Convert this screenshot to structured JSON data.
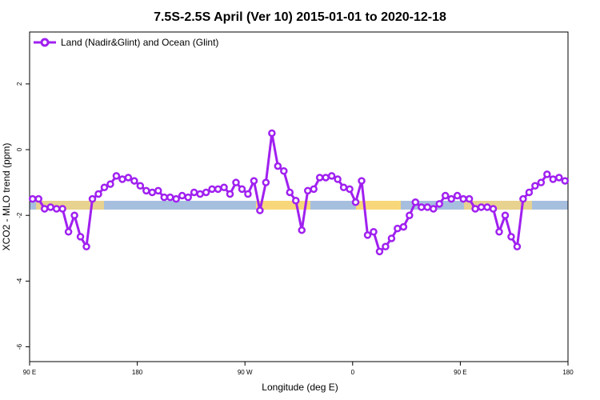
{
  "chart_data": {
    "type": "line",
    "title": "7.5S-2.5S April (Ver 10)   2015-01-01 to 2020-12-18",
    "x_label": "Longitude (deg E)",
    "y_label": "XCO2 - MLO trend (ppm)",
    "legend_position": "top-left",
    "xlim": [
      90,
      540
    ],
    "ylim": [
      -6.45,
      3.58
    ],
    "xticks": [
      {
        "value": 90,
        "label": "90 E"
      },
      180,
      {
        "value": 270,
        "label": "90 W"
      },
      {
        "value": 360,
        "label": "0"
      },
      {
        "value": 450,
        "label": "90 E"
      },
      {
        "value": 540,
        "label": "180"
      }
    ],
    "yticks": [
      2,
      0,
      -2,
      -4,
      -6
    ],
    "x": [
      92.5,
      97.5,
      102.5,
      107.5,
      112.5,
      117.5,
      122.5,
      127.5,
      132.5,
      137.5,
      142.5,
      147.5,
      152.5,
      157.5,
      162.5,
      167.5,
      172.5,
      177.5,
      182.5,
      187.5,
      192.5,
      197.5,
      202.5,
      207.5,
      212.5,
      217.5,
      222.5,
      227.5,
      232.5,
      237.5,
      242.5,
      247.5,
      252.5,
      257.5,
      262.5,
      267.5,
      272.5,
      277.5,
      282.5,
      287.5,
      292.5,
      297.5,
      302.5,
      307.5,
      312.5,
      317.5,
      322.5,
      327.5,
      332.5,
      337.5,
      342.5,
      347.5,
      352.5,
      357.5,
      362.5,
      367.5,
      372.5,
      377.5,
      382.5,
      387.5,
      392.5,
      397.5,
      402.5,
      407.5,
      412.5,
      417.5,
      422.5,
      427.5,
      432.5,
      437.5,
      442.5,
      447.5,
      452.5,
      457.5,
      462.5,
      467.5,
      472.5,
      477.5,
      482.5,
      487.5,
      492.5,
      497.5,
      502.5,
      507.5,
      512.5,
      517.5,
      522.5,
      527.5,
      532.5,
      537.5
    ],
    "series": [
      {
        "name": "Land (Nadir&Glint) and Ocean (Glint)",
        "color": "#a020f0",
        "values": [
          -1.5,
          -1.5,
          -1.8,
          -1.75,
          -1.8,
          -1.8,
          -2.5,
          -2.0,
          -2.65,
          -2.95,
          -1.5,
          -1.35,
          -1.15,
          -1.05,
          -0.8,
          -0.9,
          -0.85,
          -0.95,
          -1.1,
          -1.25,
          -1.3,
          -1.25,
          -1.45,
          -1.45,
          -1.5,
          -1.4,
          -1.45,
          -1.3,
          -1.35,
          -1.3,
          -1.2,
          -1.2,
          -1.15,
          -1.35,
          -1.0,
          -1.2,
          -1.35,
          -0.95,
          -1.85,
          -1.0,
          0.5,
          -0.5,
          -0.65,
          -1.3,
          -1.55,
          -2.45,
          -1.25,
          -1.2,
          -0.85,
          -0.85,
          -0.8,
          -0.9,
          -1.15,
          -1.2,
          -1.6,
          -0.95,
          -2.6,
          -2.5,
          -3.1,
          -2.95,
          -2.7,
          -2.4,
          -2.35,
          -2.0,
          -1.6,
          -1.75,
          -1.75,
          -1.8,
          -1.65,
          -1.4,
          -1.5,
          -1.4,
          -1.5,
          -1.5,
          -1.8,
          -1.75,
          -1.75,
          -1.8,
          -2.5,
          -2.0,
          -2.65,
          -2.95,
          -1.5,
          -1.3,
          -1.1,
          -1.0,
          -0.75,
          -0.9,
          -0.85,
          -0.95
        ]
      }
    ]
  }
}
